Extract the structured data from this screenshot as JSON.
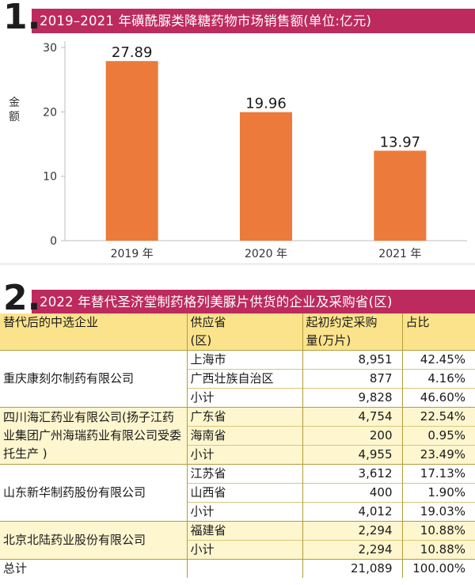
{
  "section1": {
    "number": "1.",
    "title": "2019–2021 年磺酰脲类降糖药物市场销售额(单位:亿元)"
  },
  "chart_data": {
    "type": "bar",
    "categories": [
      "2019 年",
      "2020 年",
      "2021 年"
    ],
    "values": [
      27.89,
      19.96,
      13.97
    ],
    "value_labels": [
      "27.89",
      "19.96",
      "13.97"
    ],
    "ylabel": "金额",
    "ylim": [
      0,
      30
    ],
    "yticks": [
      0,
      10,
      20,
      30
    ],
    "bar_color": "#ec7a3a",
    "grid": false,
    "legend": "none"
  },
  "section2": {
    "number": "2.",
    "title": "2022 年替代圣济堂制药格列美脲片供货的企业及采购省(区)"
  },
  "table": {
    "headers": {
      "company": "替代后的中选企业",
      "province_l1": "供应省",
      "province_l2": "(区)",
      "qty_l1": "起初约定采购",
      "qty_l2": "量(万片)",
      "share": "占比"
    },
    "groups": [
      {
        "company": "重庆康刻尔制药有限公司",
        "rows": [
          {
            "province": "上海市",
            "qty": "8,951",
            "share": "42.45%"
          },
          {
            "province": "广西壮族自治区",
            "qty": "877",
            "share": "4.16%"
          },
          {
            "province": "小计",
            "qty": "9,828",
            "share": "46.60%"
          }
        ]
      },
      {
        "company": "四川海汇药业有限公司(扬子江药业集团广州海瑞药业有限公司受委托生产 )",
        "rows": [
          {
            "province": "广东省",
            "qty": "4,754",
            "share": "22.54%"
          },
          {
            "province": "海南省",
            "qty": "200",
            "share": "0.95%"
          },
          {
            "province": "小计",
            "qty": "4,955",
            "share": "23.49%"
          }
        ]
      },
      {
        "company": "山东新华制药股份有限公司",
        "rows": [
          {
            "province": "江苏省",
            "qty": "3,612",
            "share": "17.13%"
          },
          {
            "province": "山西省",
            "qty": "400",
            "share": "1.90%"
          },
          {
            "province": "小计",
            "qty": "4,012",
            "share": "19.03%"
          }
        ]
      },
      {
        "company": "北京北陆药业股份有限公司",
        "rows": [
          {
            "province": "福建省",
            "qty": "2,294",
            "share": "10.88%"
          },
          {
            "province": "小计",
            "qty": "2,294",
            "share": "10.88%"
          }
        ]
      }
    ],
    "total": {
      "label": "总计",
      "qty": "21,089",
      "share": "100.00%"
    }
  }
}
